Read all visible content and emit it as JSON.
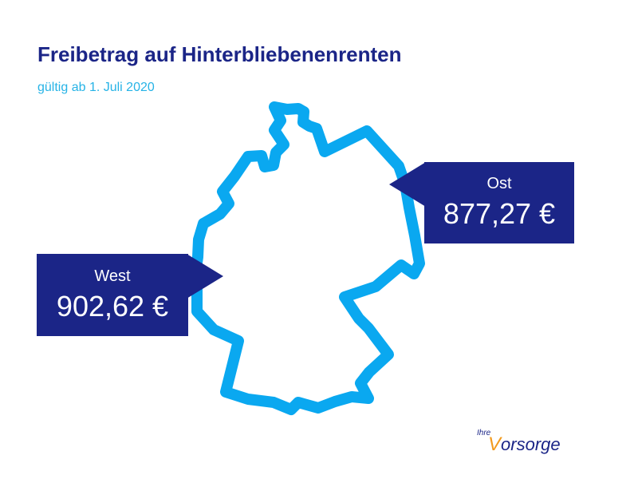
{
  "header": {
    "title": "Freibetrag auf Hinterbliebenenrenten",
    "subtitle": "gültig ab 1. Juli 2020"
  },
  "labels": {
    "west": {
      "name": "West",
      "amount": "902,62 €"
    },
    "ost": {
      "name": "Ost",
      "amount": "877,27 €"
    }
  },
  "logo": {
    "prefix": "Ihre",
    "initial": "V",
    "rest": "orsorge"
  },
  "colors": {
    "navy": "#1b2587",
    "map_outline": "#0aa8f0",
    "subtitle": "#26b3e6",
    "logo_accent": "#f29a1d"
  },
  "icons": [
    "germany-map-outline",
    "vorsorge-logo"
  ]
}
